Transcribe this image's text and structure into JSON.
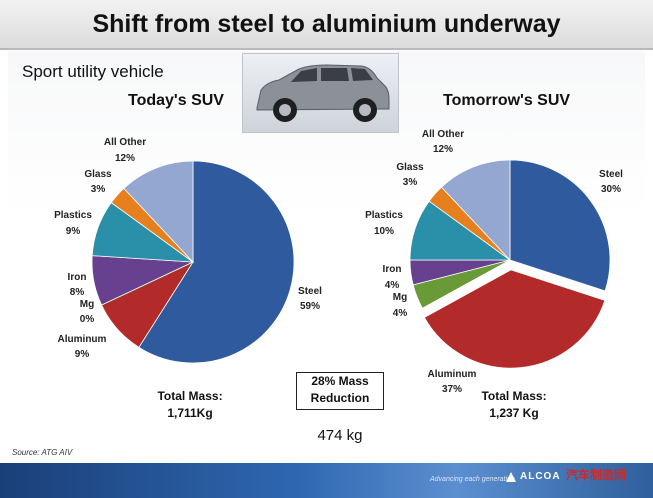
{
  "title": "Shift from steel to aluminium underway",
  "subtitle": "Sport utility vehicle",
  "chart_data": [
    {
      "type": "pie",
      "title": "Today's SUV",
      "slices": [
        {
          "label": "Steel",
          "value": 59,
          "display": "59%",
          "color": "#2f5a9e"
        },
        {
          "label": "Aluminum",
          "value": 9,
          "display": "9%",
          "color": "#b32a2a"
        },
        {
          "label": "Mg",
          "value": 0,
          "display": "0%",
          "color": "#6a9a37"
        },
        {
          "label": "Iron",
          "value": 8,
          "display": "8%",
          "color": "#67418f"
        },
        {
          "label": "Plastics",
          "value": 9,
          "display": "9%",
          "color": "#2a8fa8"
        },
        {
          "label": "Glass",
          "value": 3,
          "display": "3%",
          "color": "#e6801f"
        },
        {
          "label": "All Other",
          "value": 12,
          "display": "12%",
          "color": "#93a7d0"
        }
      ],
      "total_label": "Total Mass:",
      "total_value": "1,711Kg"
    },
    {
      "type": "pie",
      "title": "Tomorrow's SUV",
      "slices": [
        {
          "label": "Steel",
          "value": 30,
          "display": "30%",
          "color": "#2f5a9e"
        },
        {
          "label": "Aluminum",
          "value": 37,
          "display": "37%",
          "color": "#b32a2a",
          "exploded": true
        },
        {
          "label": "Mg",
          "value": 4,
          "display": "4%",
          "color": "#6a9a37"
        },
        {
          "label": "Iron",
          "value": 4,
          "display": "4%",
          "color": "#67418f"
        },
        {
          "label": "Plastics",
          "value": 10,
          "display": "10%",
          "color": "#2a8fa8"
        },
        {
          "label": "Glass",
          "value": 3,
          "display": "3%",
          "color": "#e6801f"
        },
        {
          "label": "All Other",
          "value": 12,
          "display": "12%",
          "color": "#93a7d0"
        }
      ],
      "total_label": "Total Mass:",
      "total_value": "1,237 Kg"
    }
  ],
  "reduction": {
    "line1": "28% Mass",
    "line2": "Reduction"
  },
  "difference": "474 kg",
  "source": "Source: ATG AIV",
  "footer": {
    "tagline": "Advancing each generation",
    "logo": "ALCOA"
  },
  "watermark": "汽车制造网"
}
